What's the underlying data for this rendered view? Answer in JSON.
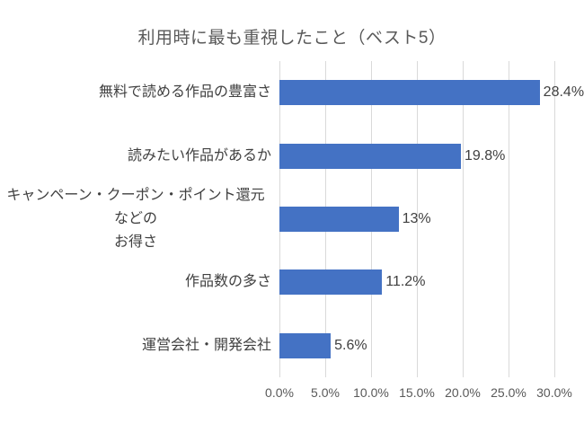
{
  "colors": {
    "bar": "#4472C4",
    "gridline": "#D9D9D9",
    "title_text": "#595959",
    "label_text": "#404040",
    "axis_text": "#595959"
  },
  "chart_data": {
    "type": "bar",
    "orientation": "horizontal",
    "title": "利用時に最も重視したこと（ベスト5）",
    "categories": [
      "無料で読める作品の豊富さ",
      "読みたい作品があるか",
      "キャンペーン・クーポン・ポイント還元などの\nお得さ",
      "作品数の多さ",
      "運営会社・開発会社"
    ],
    "values": [
      28.4,
      19.8,
      13,
      11.2,
      5.6
    ],
    "data_labels": [
      "28.4%",
      "19.8%",
      "13%",
      "11.2%",
      "5.6%"
    ],
    "x_ticks": [
      "0.0%",
      "5.0%",
      "10.0%",
      "15.0%",
      "20.0%",
      "25.0%",
      "30.0%"
    ],
    "x_tick_values": [
      0,
      5,
      10,
      15,
      20,
      25,
      30
    ],
    "xlim": [
      0,
      30
    ],
    "grid": true,
    "legend": false,
    "xlabel": "",
    "ylabel": ""
  }
}
